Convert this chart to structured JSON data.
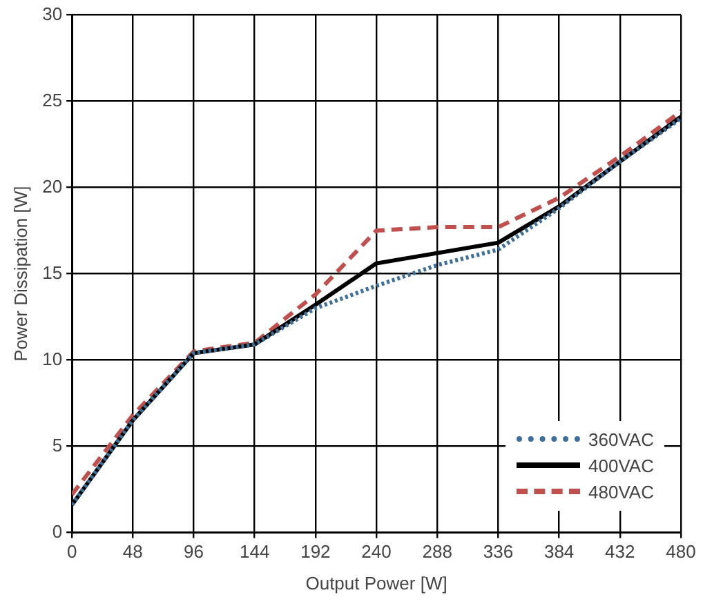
{
  "chart_data": {
    "type": "line",
    "xlabel": "Output Power [W]",
    "ylabel": "Power Dissipation [W]",
    "x": [
      0,
      48,
      96,
      144,
      192,
      240,
      288,
      336,
      384,
      432,
      480
    ],
    "series": [
      {
        "name": "360VAC",
        "color": "#3d6f99",
        "line_style": "dotted",
        "values": [
          1.6,
          6.5,
          10.4,
          10.9,
          13.0,
          14.3,
          15.5,
          16.4,
          18.8,
          21.5,
          24.0
        ]
      },
      {
        "name": "400VAC",
        "color": "#000000",
        "line_style": "solid",
        "values": [
          1.6,
          6.5,
          10.4,
          10.9,
          13.2,
          15.6,
          16.2,
          16.8,
          18.9,
          21.5,
          24.1
        ]
      },
      {
        "name": "480VAC",
        "color": "#c0504d",
        "line_style": "dashed",
        "values": [
          2.2,
          6.8,
          10.5,
          11.0,
          13.8,
          17.5,
          17.7,
          17.7,
          19.4,
          21.8,
          24.4
        ]
      }
    ],
    "xlim": [
      0,
      480
    ],
    "xticks": [
      0,
      48,
      96,
      144,
      192,
      240,
      288,
      336,
      384,
      432,
      480
    ],
    "ylim": [
      0,
      30
    ],
    "yticks": [
      0,
      5,
      10,
      15,
      20,
      25,
      30
    ],
    "grid": true,
    "legend": "bottom right",
    "marker": "none"
  }
}
